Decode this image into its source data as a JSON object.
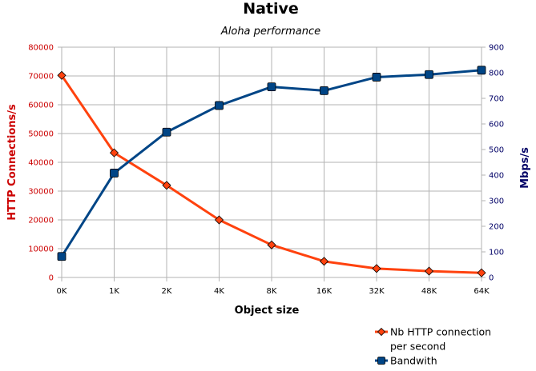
{
  "chart_data": {
    "type": "line",
    "title": "Native",
    "subtitle": "Aloha performance",
    "xlabel": "Object size",
    "ylabel_left": "HTTP Connections/s",
    "ylabel_right": "Mbps/s",
    "categories": [
      "0K",
      "1K",
      "2K",
      "4K",
      "8K",
      "16K",
      "32K",
      "48K",
      "64K"
    ],
    "ylim_left": [
      0,
      80000
    ],
    "yticks_left": [
      "0",
      "10000",
      "20000",
      "30000",
      "40000",
      "50000",
      "60000",
      "70000",
      "80000"
    ],
    "ylim_right": [
      0,
      900
    ],
    "yticks_right": [
      "0",
      "100",
      "200",
      "300",
      "400",
      "500",
      "600",
      "700",
      "800",
      "900"
    ],
    "grid": true,
    "legend_position": "bottom-right",
    "series": [
      {
        "name": "Nb HTTP connection per second",
        "legend_lines": [
          "Nb HTTP connection",
          "per second"
        ],
        "axis": "left",
        "color": "#ff420e",
        "marker": "diamond",
        "values": [
          70200,
          43300,
          32000,
          20000,
          11300,
          5600,
          3100,
          2200,
          1600
        ]
      },
      {
        "name": "Bandwith",
        "legend_lines": [
          "Bandwith"
        ],
        "axis": "right",
        "color": "#004586",
        "marker": "square",
        "values": [
          82,
          408,
          568,
          672,
          745,
          730,
          783,
          793,
          810
        ]
      }
    ]
  }
}
